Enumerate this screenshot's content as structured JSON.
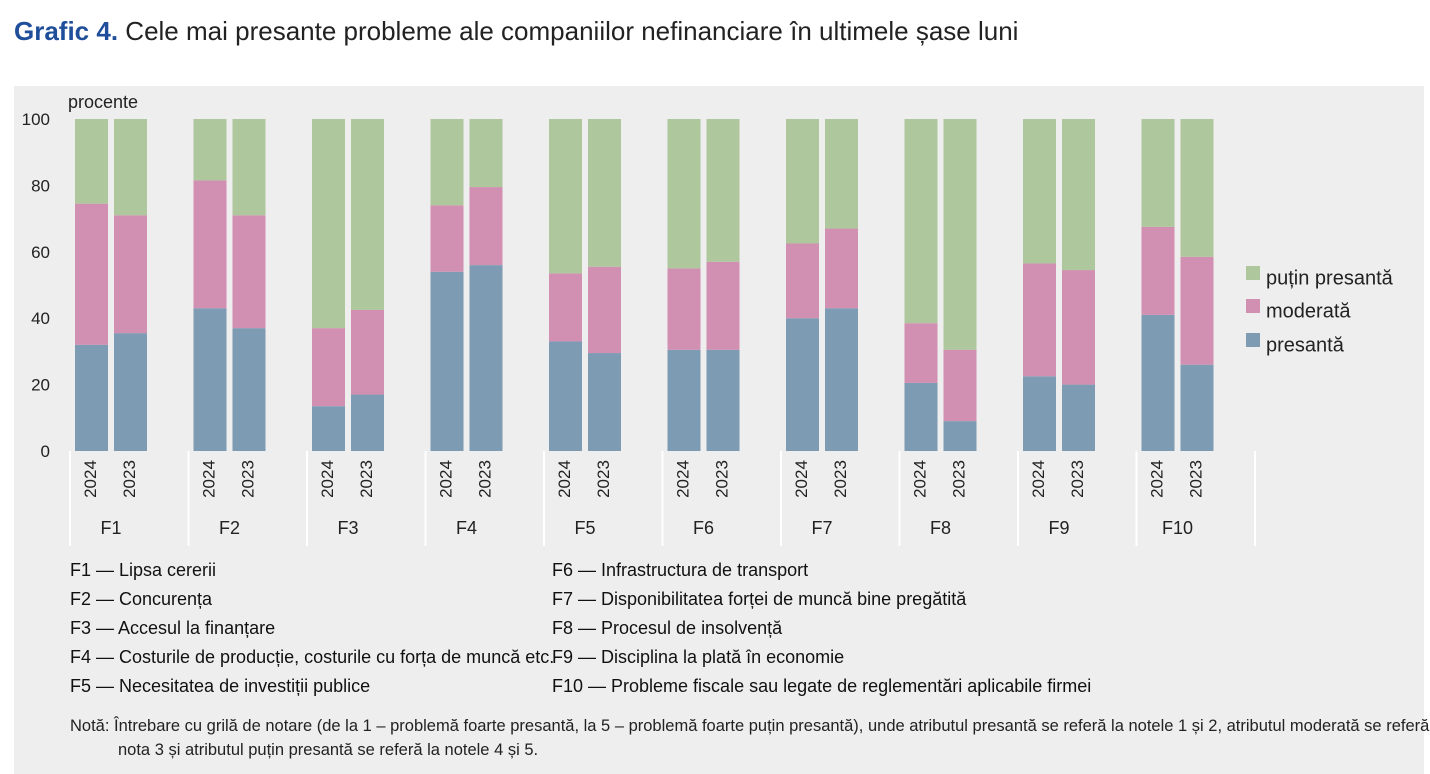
{
  "title": {
    "number": "Grafic 4.",
    "text": "Cele mai presante probleme ale companiilor nefinanciare în ultimele șase luni"
  },
  "chart_data": {
    "type": "bar",
    "stacked": true,
    "ylabel": "procente",
    "ylim": [
      0,
      100
    ],
    "yticks": [
      0,
      20,
      40,
      60,
      80,
      100
    ],
    "grid": false,
    "legend_position": "right",
    "groups": [
      "F1",
      "F2",
      "F3",
      "F4",
      "F5",
      "F6",
      "F7",
      "F8",
      "F9",
      "F10"
    ],
    "subcategories": [
      "2024",
      "2023"
    ],
    "series": [
      {
        "name": "presantă",
        "color": "#7d9bb3",
        "values": [
          [
            32,
            35.5
          ],
          [
            43,
            37
          ],
          [
            13.5,
            17
          ],
          [
            54,
            56
          ],
          [
            33,
            29.5
          ],
          [
            30.5,
            30.5
          ],
          [
            40,
            43
          ],
          [
            20.5,
            9
          ],
          [
            22.5,
            20
          ],
          [
            41,
            26
          ]
        ]
      },
      {
        "name": "moderată",
        "color": "#d18fb2",
        "values": [
          [
            42.5,
            35.5
          ],
          [
            38.5,
            34
          ],
          [
            23.5,
            25.5
          ],
          [
            20,
            23.5
          ],
          [
            20.5,
            26
          ],
          [
            24.5,
            26.5
          ],
          [
            22.5,
            24
          ],
          [
            18,
            21.5
          ],
          [
            34,
            34.5
          ],
          [
            26.5,
            32.5
          ]
        ]
      },
      {
        "name": "puțin presantă",
        "color": "#aec79c",
        "values": [
          [
            25.5,
            29
          ],
          [
            18.5,
            29
          ],
          [
            63,
            57.5
          ],
          [
            26,
            20.5
          ],
          [
            46.5,
            44.5
          ],
          [
            45,
            43
          ],
          [
            37.5,
            33
          ],
          [
            61.5,
            69.5
          ],
          [
            43.5,
            45.5
          ],
          [
            32.5,
            41.5
          ]
        ]
      }
    ],
    "legend_order": [
      "puțin presantă",
      "moderată",
      "presantă"
    ]
  },
  "legend_defs": [
    [
      "F1 — Lipsa cererii",
      "F2 — Concurența",
      "F3 — Accesul la finanțare",
      "F4 — Costurile de producție, costurile cu forța de muncă etc.",
      "F5 — Necesitatea de investiții publice"
    ],
    [
      "F6 — Infrastructura de transport",
      "F7 — Disponibilitatea forței de muncă bine pregătită",
      "F8 — Procesul de insolvență",
      "F9 — Disciplina la plată în economie",
      "F10 — Probleme fiscale sau legate de reglementări aplicabile firmei"
    ]
  ],
  "note": "Notă: Întrebare cu grilă de notare (de la 1 – problemă foarte presantă, la 5 – problemă foarte puțin presantă), unde atributul presantă se referă la notele 1 și 2, atributul moderată se referă la nota 3 și atributul puțin presantă se referă la notele 4 și 5."
}
